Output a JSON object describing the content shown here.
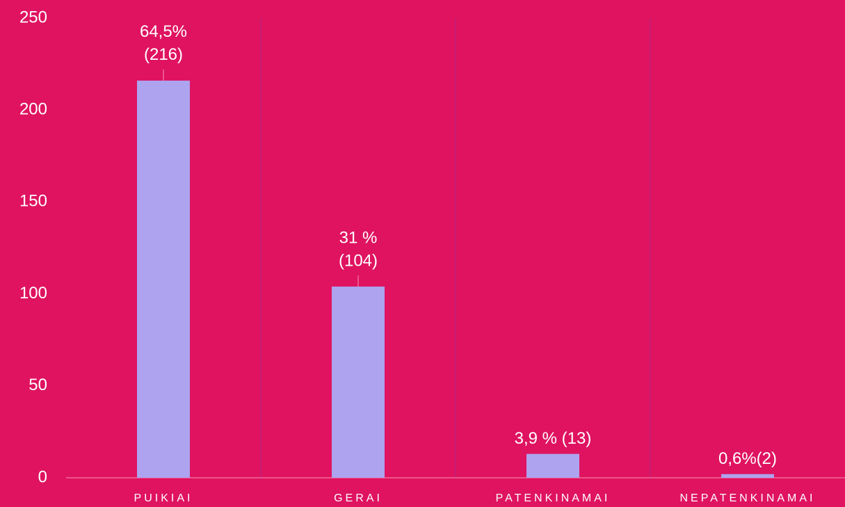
{
  "chart_data": {
    "type": "bar",
    "categories": [
      "PUIKIAI",
      "GERAI",
      "PATENKINAMAI",
      "NEPATENKINAMAI"
    ],
    "values": [
      216,
      104,
      13,
      2
    ],
    "value_labels": [
      [
        "64,5%",
        "(216)"
      ],
      [
        "31 %",
        "(104)"
      ],
      [
        "3,9 % (13)"
      ],
      [
        "0,6%(2)"
      ]
    ],
    "color": "#ada3ef",
    "ylim": [
      0,
      250
    ],
    "yticks": [
      0,
      50,
      100,
      150,
      200,
      250
    ],
    "grid": false
  }
}
